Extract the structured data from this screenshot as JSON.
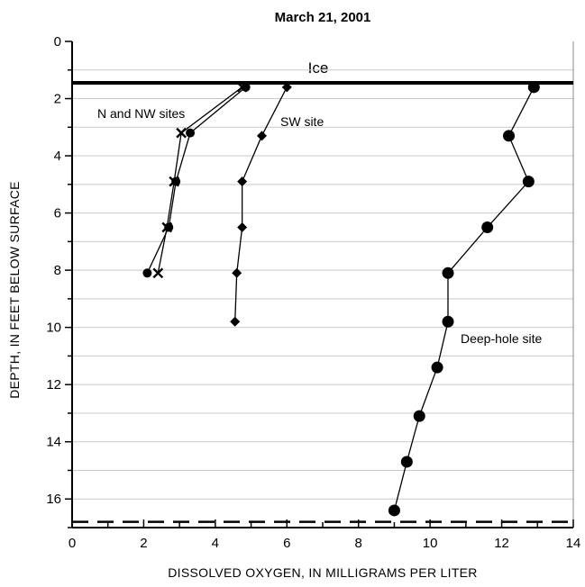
{
  "chart_data": {
    "type": "line",
    "title": "March 21, 2001",
    "xlabel": "DISSOLVED OXYGEN, IN MILLIGRAMS PER LITER",
    "ylabel": "DEPTH, IN FEET BELOW SURFACE",
    "xlim": [
      0,
      14
    ],
    "ylim": [
      0,
      17
    ],
    "y_inverted": true,
    "x_ticks": [
      0,
      2,
      4,
      6,
      8,
      10,
      12,
      14
    ],
    "y_ticks": [
      0,
      2,
      4,
      6,
      8,
      10,
      12,
      14,
      16
    ],
    "grid": "horizontal",
    "reference_lines": [
      {
        "label": "Ice",
        "depth": 1.45,
        "style": "solid"
      },
      {
        "label": "",
        "depth": 16.8,
        "style": "dashed"
      }
    ],
    "annotations": [
      {
        "text": "N and NW sites"
      },
      {
        "text": "SW site"
      },
      {
        "text": "Deep-hole site"
      }
    ],
    "series": [
      {
        "marker": "circle-small",
        "points": [
          [
            4.85,
            1.6
          ],
          [
            3.3,
            3.2
          ],
          [
            2.9,
            4.9
          ],
          [
            2.7,
            6.5
          ],
          [
            2.1,
            8.1
          ]
        ]
      },
      {
        "marker": "x",
        "points": [
          [
            4.75,
            1.6
          ],
          [
            3.05,
            3.2
          ],
          [
            2.85,
            4.9
          ],
          [
            2.65,
            6.5
          ],
          [
            2.4,
            8.1
          ]
        ]
      },
      {
        "marker": "diamond",
        "points": [
          [
            6.0,
            1.6
          ],
          [
            5.3,
            3.3
          ],
          [
            4.75,
            4.9
          ],
          [
            4.75,
            6.5
          ],
          [
            4.6,
            8.1
          ],
          [
            4.55,
            9.8
          ]
        ]
      },
      {
        "marker": "circle",
        "points": [
          [
            12.9,
            1.6
          ],
          [
            12.2,
            3.3
          ],
          [
            12.75,
            4.9
          ],
          [
            11.6,
            6.5
          ],
          [
            10.5,
            8.1
          ],
          [
            10.5,
            9.8
          ],
          [
            10.2,
            11.4
          ],
          [
            9.7,
            13.1
          ],
          [
            9.35,
            14.7
          ],
          [
            9.0,
            16.4
          ]
        ]
      }
    ]
  }
}
